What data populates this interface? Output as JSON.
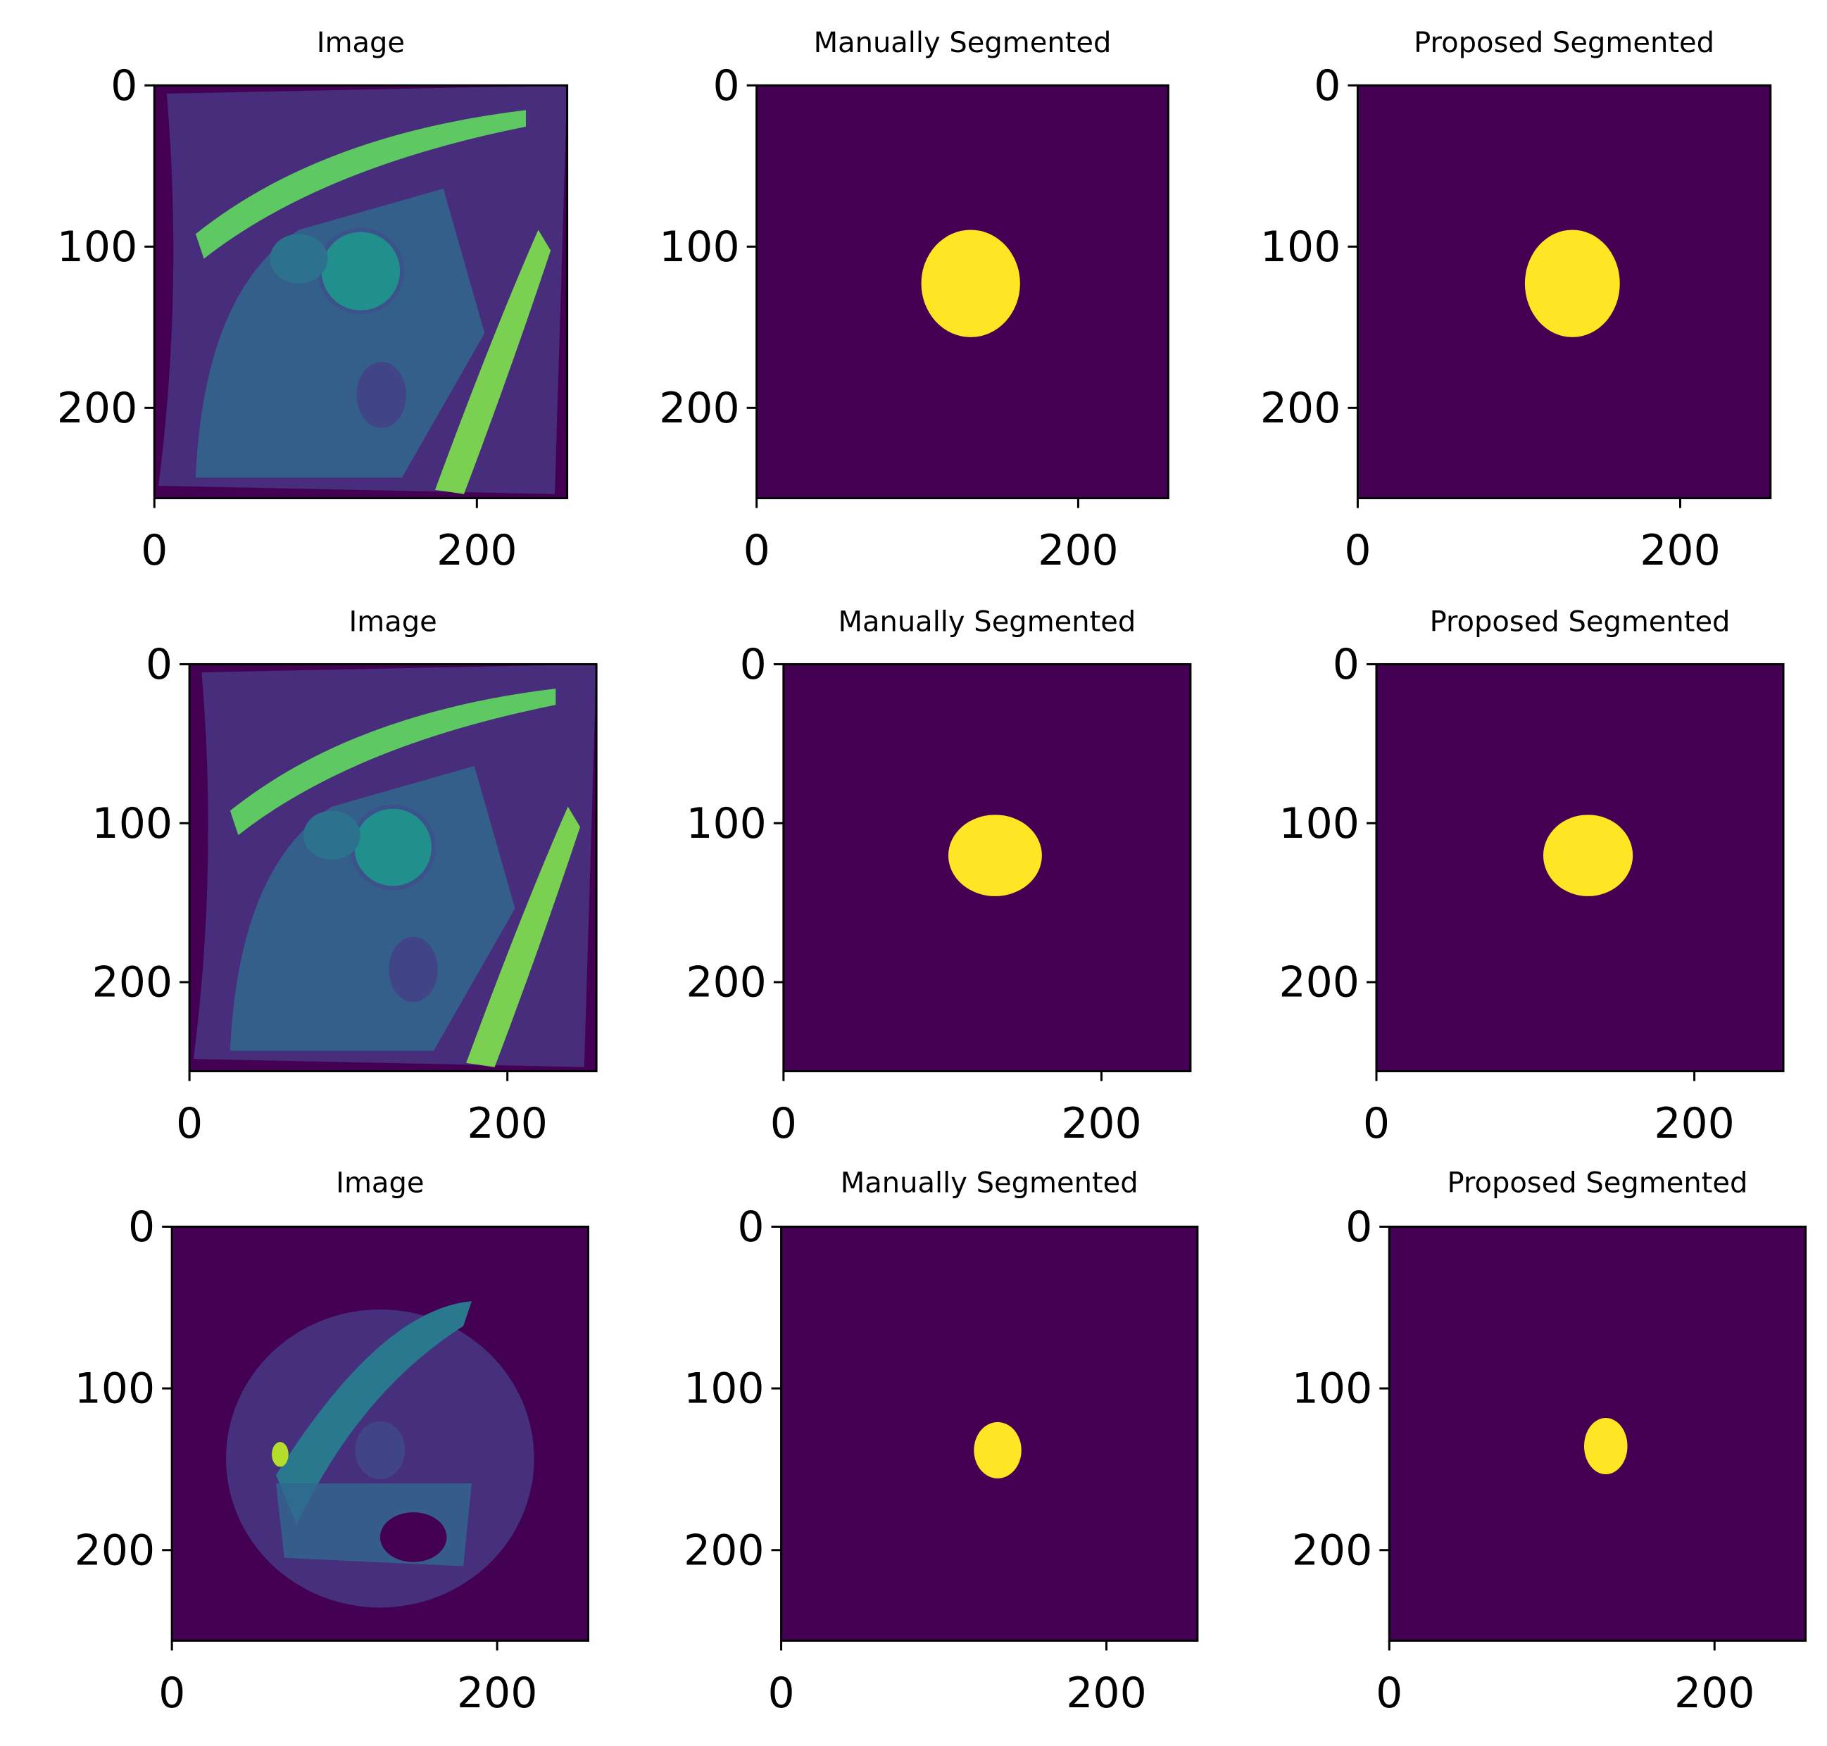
{
  "chart_data": [
    {
      "type": "image",
      "title": "Image",
      "xlim": [
        0,
        256
      ],
      "ylim": [
        256,
        0
      ],
      "xticks": [
        0,
        200
      ],
      "yticks": [
        0,
        100,
        200
      ]
    },
    {
      "type": "mask",
      "title": "Manually Segmented",
      "xlim": [
        0,
        256
      ],
      "ylim": [
        256,
        0
      ],
      "xticks": [
        0,
        200
      ],
      "yticks": [
        0,
        100,
        200
      ]
    },
    {
      "type": "mask",
      "title": "Proposed Segmented",
      "xlim": [
        0,
        256
      ],
      "ylim": [
        256,
        0
      ],
      "xticks": [
        0,
        200
      ],
      "yticks": [
        0,
        100,
        200
      ]
    },
    {
      "type": "image",
      "title": "Image",
      "xlim": [
        0,
        256
      ],
      "ylim": [
        256,
        0
      ],
      "xticks": [
        0,
        200
      ],
      "yticks": [
        0,
        100,
        200
      ]
    },
    {
      "type": "mask",
      "title": "Manually Segmented",
      "xlim": [
        0,
        256
      ],
      "ylim": [
        256,
        0
      ],
      "xticks": [
        0,
        200
      ],
      "yticks": [
        0,
        100,
        200
      ]
    },
    {
      "type": "mask",
      "title": "Proposed Segmented",
      "xlim": [
        0,
        256
      ],
      "ylim": [
        256,
        0
      ],
      "xticks": [
        0,
        200
      ],
      "yticks": [
        0,
        100,
        200
      ]
    },
    {
      "type": "image",
      "title": "Image",
      "xlim": [
        0,
        256
      ],
      "ylim": [
        256,
        0
      ],
      "xticks": [
        0,
        200
      ],
      "yticks": [
        0,
        100,
        200
      ]
    },
    {
      "type": "mask",
      "title": "Manually Segmented",
      "xlim": [
        0,
        256
      ],
      "ylim": [
        256,
        0
      ],
      "xticks": [
        0,
        200
      ],
      "yticks": [
        0,
        100,
        200
      ]
    },
    {
      "type": "mask",
      "title": "Proposed Segmented",
      "xlim": [
        0,
        256
      ],
      "ylim": [
        256,
        0
      ],
      "xticks": [
        0,
        200
      ],
      "yticks": [
        0,
        100,
        200
      ]
    }
  ]
}
